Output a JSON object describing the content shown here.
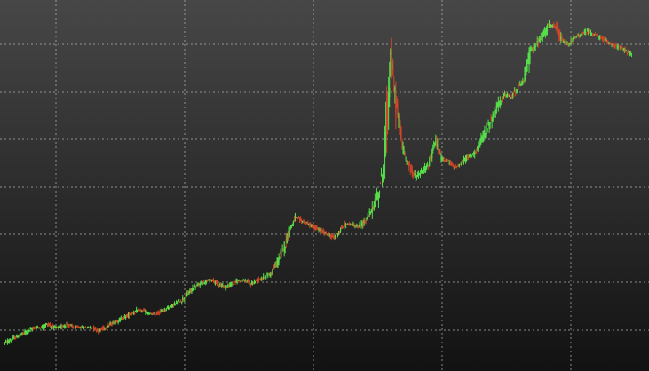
{
  "chart_data": {
    "type": "line",
    "style": "candlestick-like price series without axes or labels",
    "title": "",
    "xlabel": "",
    "ylabel": "",
    "grid": true,
    "legend": "none",
    "ylim": [
      0,
      100
    ],
    "x": [
      0,
      1,
      2,
      3,
      4,
      5,
      6,
      7,
      8,
      9,
      10,
      11,
      12,
      13,
      14,
      15,
      16,
      17,
      18,
      19,
      20,
      21,
      22,
      23,
      24,
      25,
      26,
      27,
      28,
      29,
      30,
      31,
      32,
      33,
      34,
      35,
      36,
      37,
      38,
      39,
      40,
      41,
      42,
      43,
      44,
      45,
      46,
      47,
      48,
      49,
      50,
      51,
      52,
      53,
      54,
      55,
      56,
      57,
      58,
      59,
      60,
      61,
      62,
      63,
      64,
      65,
      66,
      67,
      68,
      69,
      70,
      71,
      72,
      73,
      74,
      75,
      76,
      77,
      78,
      79,
      80,
      81,
      82,
      83,
      84,
      85,
      86,
      87,
      88,
      89,
      90,
      91,
      92,
      93,
      94,
      95,
      96,
      97,
      98,
      99
    ],
    "series": [
      {
        "values": [
          2,
          3,
          4,
          5,
          6,
          7,
          7,
          8,
          7,
          7,
          8,
          7,
          7,
          7,
          7,
          6,
          7,
          8,
          9,
          10,
          11,
          12,
          12,
          11,
          11,
          12,
          13,
          14,
          15,
          17,
          19,
          20,
          21,
          21,
          20,
          19,
          20,
          21,
          21,
          20,
          21,
          22,
          23,
          26,
          30,
          36,
          40,
          39,
          38,
          37,
          36,
          35,
          34,
          36,
          38,
          38,
          37,
          39,
          42,
          47,
          56,
          88,
          72,
          60,
          55,
          52,
          54,
          56,
          63,
          58,
          57,
          55,
          56,
          58,
          59,
          62,
          66,
          70,
          74,
          77,
          76,
          79,
          81,
          90,
          92,
          95,
          98,
          97,
          93,
          92,
          94,
          95,
          96,
          95,
          94,
          93,
          92,
          91,
          90,
          89
        ],
        "colors": {
          "up": "#55e04a",
          "down": "#d64528"
        }
      }
    ],
    "theme": {
      "background_top": "#474747",
      "background_bottom": "#121212",
      "grid": "#b9b9b9"
    }
  }
}
